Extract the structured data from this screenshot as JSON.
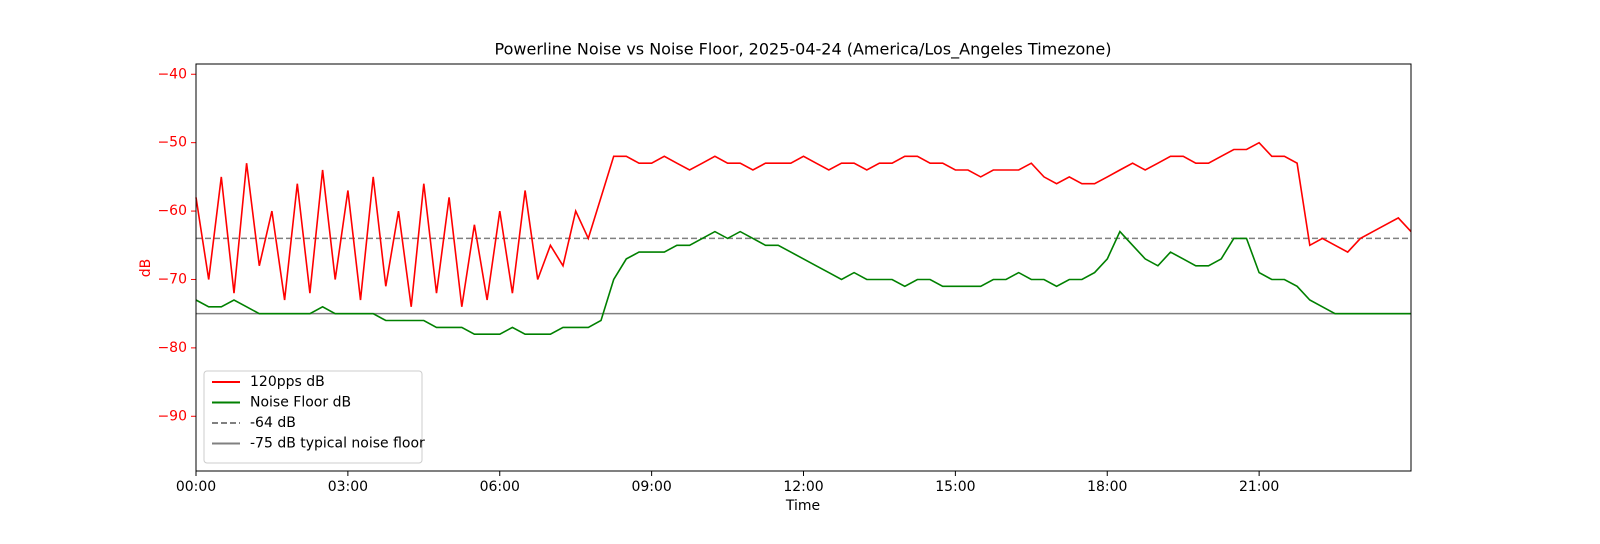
{
  "chart_data": {
    "type": "line",
    "title": "Powerline Noise vs Noise Floor, 2025-04-24 (America/Los_Angeles Timezone)",
    "xlabel": "Time",
    "ylabel": "dB",
    "ylabel_color": "#ff0000",
    "x": [
      0,
      0.25,
      0.5,
      0.75,
      1,
      1.25,
      1.5,
      1.75,
      2,
      2.25,
      2.5,
      2.75,
      3,
      3.25,
      3.5,
      3.75,
      4,
      4.25,
      4.5,
      4.75,
      5,
      5.25,
      5.5,
      5.75,
      6,
      6.25,
      6.5,
      6.75,
      7,
      7.25,
      7.5,
      7.75,
      8,
      8.25,
      8.5,
      8.75,
      9,
      9.25,
      9.5,
      9.75,
      10,
      10.25,
      10.5,
      10.75,
      11,
      11.25,
      11.5,
      11.75,
      12,
      12.25,
      12.5,
      12.75,
      13,
      13.25,
      13.5,
      13.75,
      14,
      14.25,
      14.5,
      14.75,
      15,
      15.25,
      15.5,
      15.75,
      16,
      16.25,
      16.5,
      16.75,
      17,
      17.25,
      17.5,
      17.75,
      18,
      18.25,
      18.5,
      18.75,
      19,
      19.25,
      19.5,
      19.75,
      20,
      20.25,
      20.5,
      20.75,
      21,
      21.25,
      21.5,
      21.75,
      22,
      22.25,
      22.5,
      22.75,
      23,
      23.25,
      23.5,
      23.75,
      24
    ],
    "series": [
      {
        "name": "120pps dB",
        "color": "#ff0000",
        "values": [
          -58,
          -70,
          -55,
          -72,
          -53,
          -68,
          -60,
          -73,
          -56,
          -72,
          -54,
          -70,
          -57,
          -73,
          -55,
          -71,
          -60,
          -74,
          -56,
          -72,
          -58,
          -74,
          -62,
          -73,
          -60,
          -72,
          -57,
          -70,
          -65,
          -68,
          -60,
          -64,
          -58,
          -52,
          -52,
          -53,
          -53,
          -52,
          -53,
          -54,
          -53,
          -52,
          -53,
          -53,
          -54,
          -53,
          -53,
          -53,
          -52,
          -53,
          -54,
          -53,
          -53,
          -54,
          -53,
          -53,
          -52,
          -52,
          -53,
          -53,
          -54,
          -54,
          -55,
          -54,
          -54,
          -54,
          -53,
          -55,
          -56,
          -55,
          -56,
          -56,
          -55,
          -54,
          -53,
          -54,
          -53,
          -52,
          -52,
          -53,
          -53,
          -52,
          -51,
          -51,
          -50,
          -52,
          -52,
          -53,
          -65,
          -64,
          -65,
          -66,
          -64,
          -63,
          -62,
          -61,
          -63
        ]
      },
      {
        "name": "Noise Floor dB",
        "color": "#008000",
        "values": [
          -73,
          -74,
          -74,
          -73,
          -74,
          -75,
          -75,
          -75,
          -75,
          -75,
          -74,
          -75,
          -75,
          -75,
          -75,
          -76,
          -76,
          -76,
          -76,
          -77,
          -77,
          -77,
          -78,
          -78,
          -78,
          -77,
          -78,
          -78,
          -78,
          -77,
          -77,
          -77,
          -76,
          -70,
          -67,
          -66,
          -66,
          -66,
          -65,
          -65,
          -64,
          -63,
          -64,
          -63,
          -64,
          -65,
          -65,
          -66,
          -67,
          -68,
          -69,
          -70,
          -69,
          -70,
          -70,
          -70,
          -71,
          -70,
          -70,
          -71,
          -71,
          -71,
          -71,
          -70,
          -70,
          -69,
          -70,
          -70,
          -71,
          -70,
          -70,
          -69,
          -67,
          -63,
          -65,
          -67,
          -68,
          -66,
          -67,
          -68,
          -68,
          -67,
          -64,
          -64,
          -69,
          -70,
          -70,
          -71,
          -73,
          -74,
          -75,
          -75,
          -75,
          -75,
          -75,
          -75,
          -75
        ]
      }
    ],
    "hlines": [
      {
        "name": "-64 dB",
        "value": -64,
        "color": "#808080",
        "style": "dashed"
      },
      {
        "name": "-75 dB typical noise floor",
        "value": -75,
        "color": "#808080",
        "style": "solid"
      }
    ],
    "xlim": [
      0,
      24
    ],
    "ylim": [
      -98,
      -38.5
    ],
    "xticks": [
      {
        "value": 0,
        "label": "00:00"
      },
      {
        "value": 3,
        "label": "03:00"
      },
      {
        "value": 6,
        "label": "06:00"
      },
      {
        "value": 9,
        "label": "09:00"
      },
      {
        "value": 12,
        "label": "12:00"
      },
      {
        "value": 15,
        "label": "15:00"
      },
      {
        "value": 18,
        "label": "18:00"
      },
      {
        "value": 21,
        "label": "21:00"
      }
    ],
    "yticks": [
      {
        "value": -90,
        "label": "−90"
      },
      {
        "value": -80,
        "label": "−80"
      },
      {
        "value": -70,
        "label": "−70"
      },
      {
        "value": -60,
        "label": "−60"
      },
      {
        "value": -50,
        "label": "−50"
      },
      {
        "value": -40,
        "label": "−40"
      }
    ],
    "ytick_color": "#ff0000",
    "legend": "lower left",
    "grid": false
  }
}
